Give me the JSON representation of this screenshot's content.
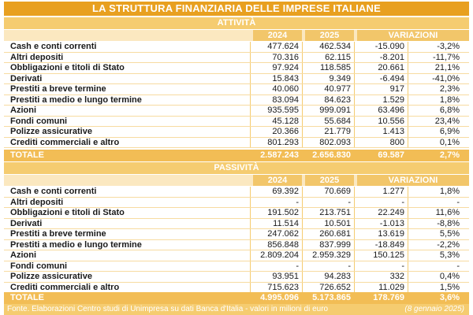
{
  "title": "LA STRUTTURA FINANZIARIA DELLE IMPRESE ITALIANE",
  "headers": {
    "y2024": "2024",
    "y2025": "2025",
    "variazioni": "VARIAZIONI"
  },
  "attivita": {
    "label": "ATTIVITÀ",
    "rows": [
      {
        "label": "Cash e conti correnti",
        "v2024": "477.624",
        "v2025": "462.534",
        "var_abs": "-15.090",
        "var_pct": "-3,2%"
      },
      {
        "label": "Altri depositi",
        "v2024": "70.316",
        "v2025": "62.115",
        "var_abs": "-8.201",
        "var_pct": "-11,7%"
      },
      {
        "label": "Obbligazioni e titoli di Stato",
        "v2024": "97.924",
        "v2025": "118.585",
        "var_abs": "20.661",
        "var_pct": "21,1%"
      },
      {
        "label": "Derivati",
        "v2024": "15.843",
        "v2025": "9.349",
        "var_abs": "-6.494",
        "var_pct": "-41,0%"
      },
      {
        "label": "Prestiti a breve termine",
        "v2024": "40.060",
        "v2025": "40.977",
        "var_abs": "917",
        "var_pct": "2,3%"
      },
      {
        "label": "Prestiti a medio e lungo termine",
        "v2024": "83.094",
        "v2025": "84.623",
        "var_abs": "1.529",
        "var_pct": "1,8%"
      },
      {
        "label": "Azioni",
        "v2024": "935.595",
        "v2025": "999.091",
        "var_abs": "63.496",
        "var_pct": "6,8%"
      },
      {
        "label": "Fondi comuni",
        "v2024": "45.128",
        "v2025": "55.684",
        "var_abs": "10.556",
        "var_pct": "23,4%"
      },
      {
        "label": "Polizze assicurative",
        "v2024": "20.366",
        "v2025": "21.779",
        "var_abs": "1.413",
        "var_pct": "6,9%"
      },
      {
        "label": "Crediti commerciali e altro",
        "v2024": "801.293",
        "v2025": "802.093",
        "var_abs": "800",
        "var_pct": "0,1%"
      }
    ],
    "total": {
      "label": "TOTALE",
      "v2024": "2.587.243",
      "v2025": "2.656.830",
      "var_abs": "69.587",
      "var_pct": "2,7%"
    }
  },
  "passivita": {
    "label": "PASSIVITÀ",
    "rows": [
      {
        "label": "Cash e conti correnti",
        "v2024": "69.392",
        "v2025": "70.669",
        "var_abs": "1.277",
        "var_pct": "1,8%"
      },
      {
        "label": "Altri depositi",
        "v2024": "-",
        "v2025": "-",
        "var_abs": "-",
        "var_pct": "-"
      },
      {
        "label": "Obbligazioni e titoli di Stato",
        "v2024": "191.502",
        "v2025": "213.751",
        "var_abs": "22.249",
        "var_pct": "11,6%"
      },
      {
        "label": "Derivati",
        "v2024": "11.514",
        "v2025": "10.501",
        "var_abs": "-1.013",
        "var_pct": "-8,8%"
      },
      {
        "label": "Prestiti a breve termine",
        "v2024": "247.062",
        "v2025": "260.681",
        "var_abs": "13.619",
        "var_pct": "5,5%"
      },
      {
        "label": "Prestiti a medio e lungo termine",
        "v2024": "856.848",
        "v2025": "837.999",
        "var_abs": "-18.849",
        "var_pct": "-2,2%"
      },
      {
        "label": "Azioni",
        "v2024": "2.809.204",
        "v2025": "2.959.329",
        "var_abs": "150.125",
        "var_pct": "5,3%"
      },
      {
        "label": "Fondi comuni",
        "v2024": "-",
        "v2025": "-",
        "var_abs": "-",
        "var_pct": "-"
      },
      {
        "label": "Polizze assicurative",
        "v2024": "93.951",
        "v2025": "94.283",
        "var_abs": "332",
        "var_pct": "0,4%"
      },
      {
        "label": "Crediti commerciali e altro",
        "v2024": "715.623",
        "v2025": "726.652",
        "var_abs": "11.029",
        "var_pct": "1,5%"
      }
    ],
    "total": {
      "label": "TOTALE",
      "v2024": "4.995.096",
      "v2025": "5.173.865",
      "var_abs": "178.769",
      "var_pct": "3,6%"
    }
  },
  "source": {
    "text": "Fonte. Elaborazioni Centro studi di Unimpresa su dati Banca d'Italia - valori in milioni di euro",
    "date": "(8 gennaio 2025)"
  },
  "colors": {
    "accent": "#e8a020",
    "header": "#f2c66a",
    "section": "#f5cc70",
    "total": "#f2bd55"
  }
}
